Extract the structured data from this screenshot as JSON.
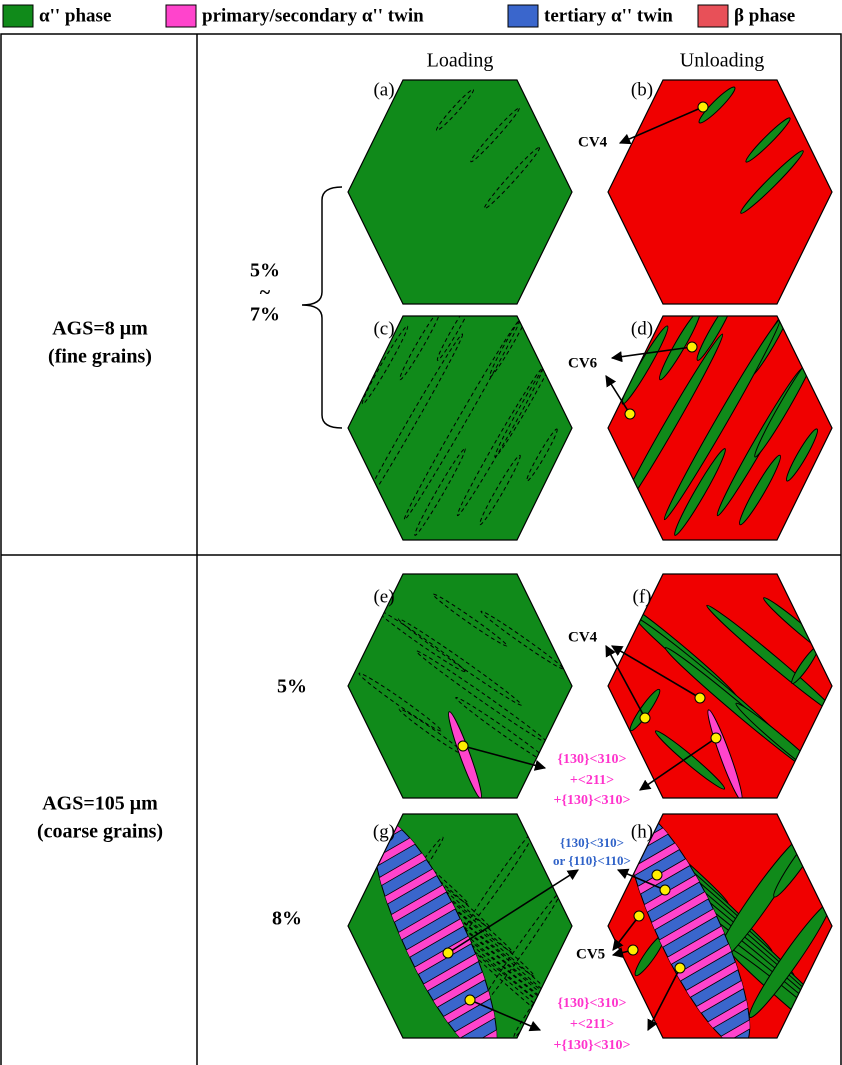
{
  "legend": {
    "items": [
      "α'' phase",
      "primary/secondary α'' twin",
      "tertiary α'' twin",
      "β phase"
    ]
  },
  "columns": [
    "Loading",
    "Unloading"
  ],
  "rows": [
    {
      "label": [
        "AGS=8 μm",
        "(fine grains)"
      ],
      "strain": [
        "5%",
        "~",
        "7%"
      ],
      "panels": [
        "(a)",
        "(b)",
        "(c)",
        "(d)"
      ]
    },
    {
      "label": [
        "AGS=105 μm",
        "(coarse grains)"
      ],
      "strain": [
        "5%",
        "8%"
      ],
      "panels": [
        "(e)",
        "(f)",
        "(g)",
        "(h)"
      ]
    }
  ],
  "annotations": {
    "b": [
      "CV4"
    ],
    "d": [
      "CV6"
    ],
    "f": [
      "CV4"
    ],
    "ef": [
      "{130}<310>",
      "+<211>",
      "+{130}<310>"
    ],
    "ghtop": [
      "{130}<310>",
      "or {110}<110>"
    ],
    "h": [
      "CV5"
    ],
    "ghbottom": [
      "{130}<310>",
      "+<211>",
      "+{130}<310>"
    ]
  }
}
